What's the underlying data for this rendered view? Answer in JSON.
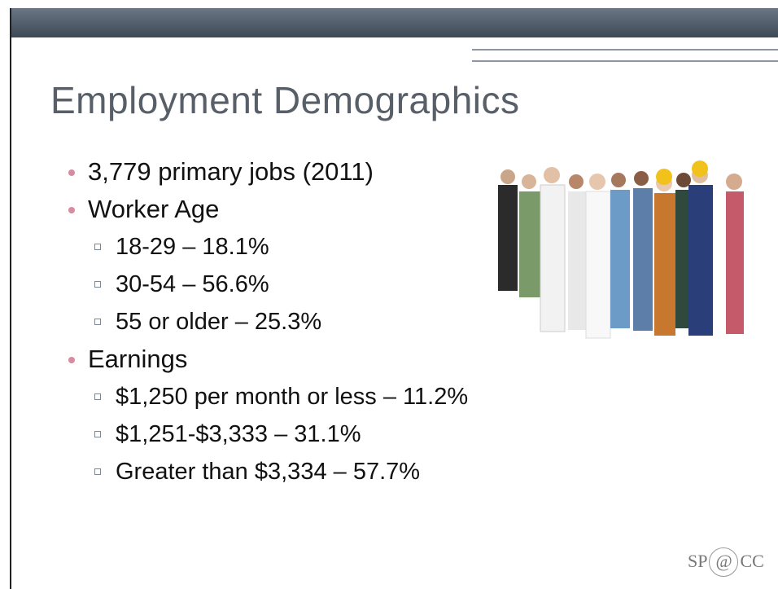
{
  "title": "Employment Demographics",
  "bullets": [
    {
      "text": "3,779 primary jobs (2011)"
    },
    {
      "text": "Worker Age",
      "items": [
        "18-29 – 18.1%",
        "30-54 – 56.6%",
        "55 or older – 25.3%"
      ]
    },
    {
      "text": "Earnings",
      "items": [
        "$1,250 per month or less – 11.2%",
        "$1,251-$3,333 – 31.1%",
        "Greater than $3,334 – 57.7%"
      ]
    }
  ],
  "logo": {
    "left": "SP",
    "mark": "@",
    "right": "CC"
  }
}
